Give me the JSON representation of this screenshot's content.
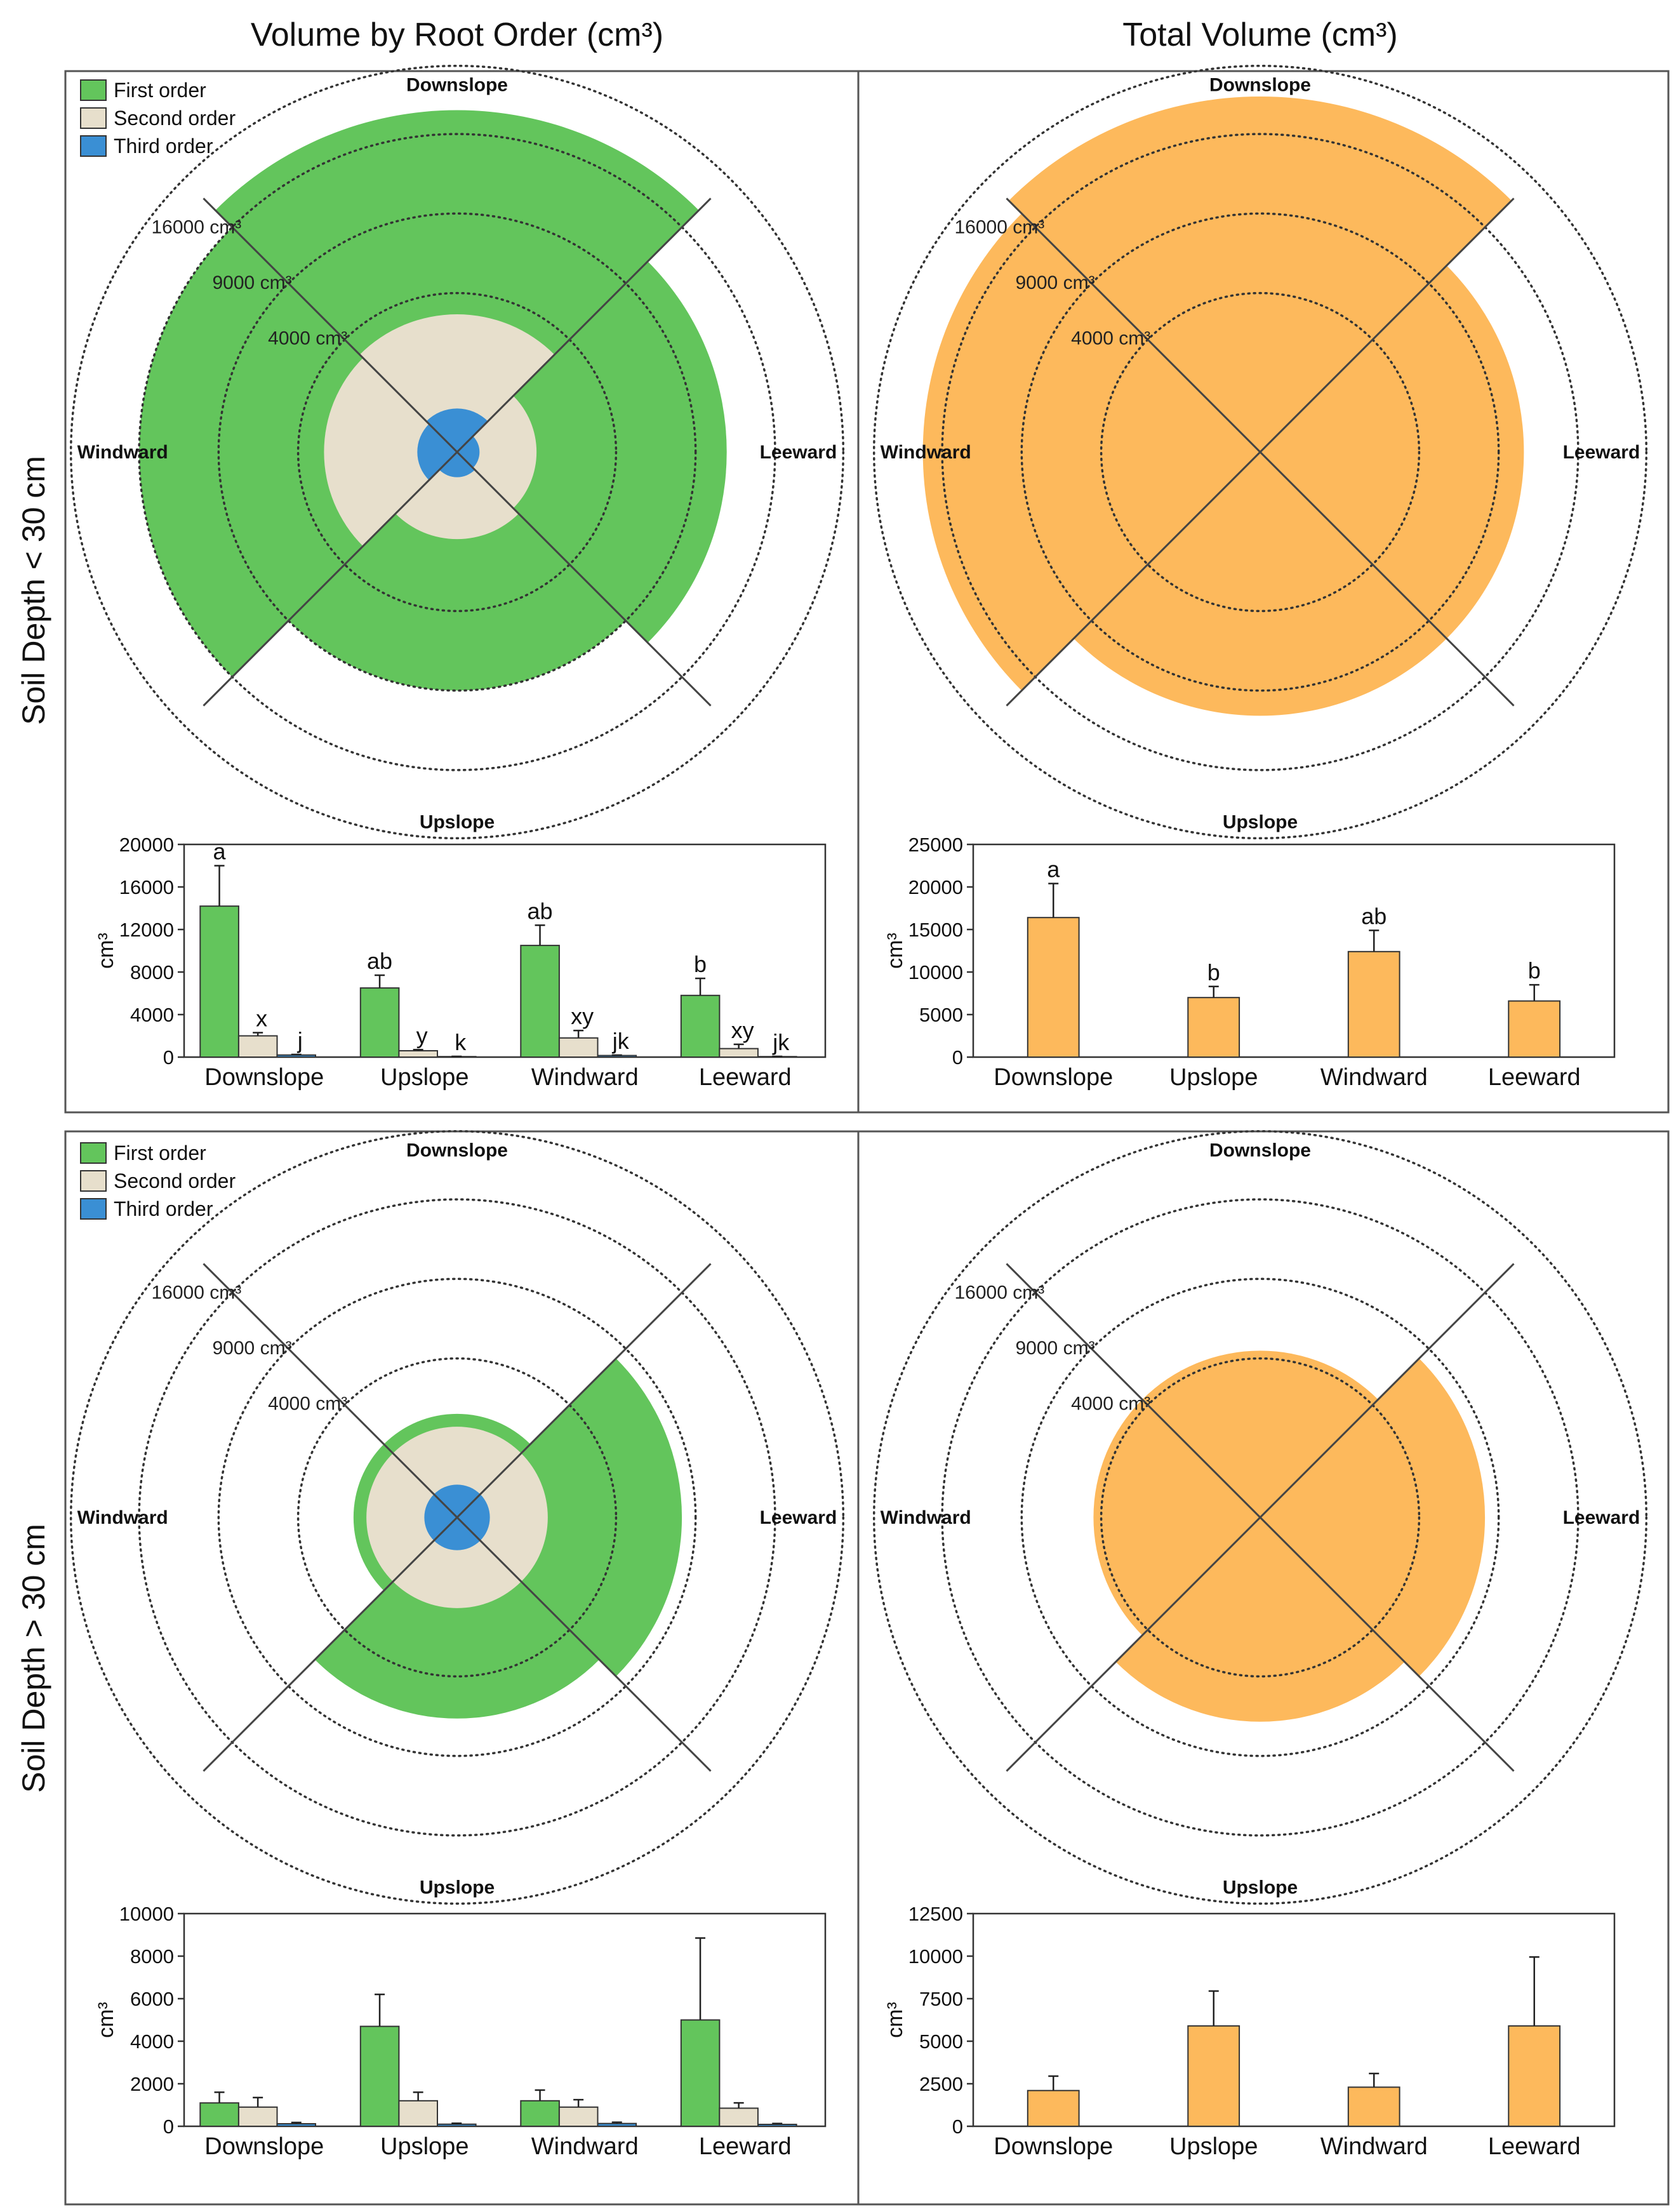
{
  "headers": {
    "left": "Volume by Root Order (cm³)",
    "right": "Total Volume (cm³)"
  },
  "row_labels": [
    "Soil Depth < 30 cm",
    "Soil Depth > 30 cm"
  ],
  "directions": [
    "Downslope",
    "Upslope",
    "Windward",
    "Leeward"
  ],
  "legend": [
    "First order",
    "Second order",
    "Third order"
  ],
  "colors": {
    "first": "#63c55c",
    "second": "#e7dfcc",
    "third": "#3a8fd4",
    "total": "#fdb95c",
    "frame": "#555555",
    "axis": "#333333"
  },
  "rings": [
    "4000 cm³",
    "9000 cm³",
    "16000 cm³"
  ],
  "ring_values": [
    4000,
    9000,
    16000
  ],
  "chart_data": [
    {
      "type": "polar-area",
      "panel": "Volume by Root Order, Soil Depth < 30 cm",
      "categories": [
        "Downslope",
        "Upslope",
        "Windward",
        "Leeward"
      ],
      "series": [
        {
          "name": "First order",
          "values": [
            18500,
            9000,
            16000,
            11500
          ]
        },
        {
          "name": "Second order",
          "values": [
            3000,
            1200,
            2800,
            1000
          ]
        },
        {
          "name": "Third order",
          "values": [
            300,
            100,
            250,
            80
          ]
        }
      ]
    },
    {
      "type": "polar-area",
      "panel": "Total Volume, Soil Depth < 30 cm",
      "categories": [
        "Downslope",
        "Upslope",
        "Windward",
        "Leeward"
      ],
      "series": [
        {
          "name": "Total",
          "values": [
            20000,
            11000,
            18000,
            11000
          ]
        }
      ]
    },
    {
      "type": "polar-area",
      "panel": "Volume by Root Order, Soil Depth > 30 cm",
      "categories": [
        "Downslope",
        "Upslope",
        "Windward",
        "Leeward"
      ],
      "series": [
        {
          "name": "First order",
          "values": [
            1700,
            6400,
            1700,
            8000
          ]
        },
        {
          "name": "Second order",
          "values": [
            1300,
            1300,
            1300,
            1300
          ]
        },
        {
          "name": "Third order",
          "values": [
            170,
            170,
            170,
            170
          ]
        }
      ]
    },
    {
      "type": "polar-area",
      "panel": "Total Volume, Soil Depth > 30 cm",
      "categories": [
        "Downslope",
        "Upslope",
        "Windward",
        "Leeward"
      ],
      "series": [
        {
          "name": "Total",
          "values": [
            4400,
            6600,
            4400,
            8000
          ]
        }
      ]
    },
    {
      "type": "bar",
      "panel": "Volume by Root Order, Soil Depth < 30 cm",
      "categories": [
        "Downslope",
        "Upslope",
        "Windward",
        "Leeward"
      ],
      "series": [
        {
          "name": "First order",
          "values": [
            14200,
            6500,
            10500,
            5800
          ],
          "errors": [
            3800,
            1200,
            1900,
            1600
          ]
        },
        {
          "name": "Second order",
          "values": [
            2000,
            600,
            1800,
            800
          ],
          "errors": [
            300,
            100,
            700,
            400
          ]
        },
        {
          "name": "Third order",
          "values": [
            200,
            50,
            150,
            50
          ],
          "errors": [
            50,
            20,
            40,
            20
          ]
        }
      ],
      "labels": [
        [
          "a",
          "x",
          "j"
        ],
        [
          "ab",
          "y",
          "k"
        ],
        [
          "ab",
          "xy",
          "jk"
        ],
        [
          "b",
          "xy",
          "jk"
        ]
      ],
      "ylabel": "cm³",
      "ylim": [
        0,
        20000
      ],
      "yticks": [
        0,
        4000,
        8000,
        12000,
        16000,
        20000
      ]
    },
    {
      "type": "bar",
      "panel": "Total Volume, Soil Depth < 30 cm",
      "categories": [
        "Downslope",
        "Upslope",
        "Windward",
        "Leeward"
      ],
      "series": [
        {
          "name": "Total",
          "values": [
            16400,
            7000,
            12400,
            6600
          ],
          "errors": [
            4000,
            1300,
            2500,
            1900
          ]
        }
      ],
      "labels": [
        [
          "a"
        ],
        [
          "b"
        ],
        [
          "ab"
        ],
        [
          "b"
        ]
      ],
      "ylabel": "cm³",
      "ylim": [
        0,
        25000
      ],
      "yticks": [
        0,
        5000,
        10000,
        15000,
        20000,
        25000
      ]
    },
    {
      "type": "bar",
      "panel": "Volume by Root Order, Soil Depth > 30 cm",
      "categories": [
        "Downslope",
        "Upslope",
        "Windward",
        "Leeward"
      ],
      "series": [
        {
          "name": "First order",
          "values": [
            1100,
            4700,
            1200,
            5000
          ],
          "errors": [
            500,
            1500,
            500,
            3850
          ]
        },
        {
          "name": "Second order",
          "values": [
            900,
            1200,
            900,
            850
          ],
          "errors": [
            450,
            400,
            350,
            250
          ]
        },
        {
          "name": "Third order",
          "values": [
            120,
            100,
            130,
            90
          ],
          "errors": [
            60,
            40,
            60,
            40
          ]
        }
      ],
      "ylabel": "cm³",
      "ylim": [
        0,
        10000
      ],
      "yticks": [
        0,
        2000,
        4000,
        6000,
        8000,
        10000
      ]
    },
    {
      "type": "bar",
      "panel": "Total Volume, Soil Depth > 30 cm",
      "categories": [
        "Downslope",
        "Upslope",
        "Windward",
        "Leeward"
      ],
      "series": [
        {
          "name": "Total",
          "values": [
            2100,
            5900,
            2300,
            5900
          ],
          "errors": [
            850,
            2050,
            800,
            4050
          ]
        }
      ],
      "ylabel": "cm³",
      "ylim": [
        0,
        12500
      ],
      "yticks": [
        0,
        2500,
        5000,
        7500,
        10000,
        12500
      ]
    }
  ]
}
